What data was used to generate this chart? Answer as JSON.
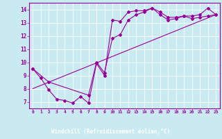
{
  "background_color": "#c8eaf0",
  "line_color": "#990099",
  "grid_color": "#ffffff",
  "axis_bg": "#800080",
  "xlabel": "Windchill (Refroidissement éolien,°C)",
  "x_ticks": [
    0,
    1,
    2,
    3,
    4,
    5,
    6,
    7,
    8,
    9,
    10,
    11,
    12,
    13,
    14,
    15,
    16,
    17,
    18,
    19,
    20,
    21,
    22,
    23
  ],
  "ylim": [
    6.5,
    14.5
  ],
  "xlim": [
    -0.5,
    23.5
  ],
  "yticks": [
    7,
    8,
    9,
    10,
    11,
    12,
    13,
    14
  ],
  "series1_x": [
    0,
    1,
    2,
    3,
    4,
    5,
    6,
    7,
    8,
    9,
    10,
    11,
    12,
    13,
    14,
    15,
    16,
    17,
    18,
    19,
    20,
    21,
    22,
    23
  ],
  "series1_y": [
    9.5,
    8.8,
    7.9,
    7.2,
    7.1,
    6.9,
    7.4,
    6.9,
    9.9,
    9.0,
    13.2,
    13.1,
    13.8,
    13.9,
    13.9,
    14.1,
    13.6,
    13.2,
    13.3,
    13.5,
    13.3,
    13.4,
    13.5,
    13.6
  ],
  "series2_x": [
    0,
    2,
    7,
    8,
    9,
    10,
    11,
    12,
    13,
    14,
    15,
    16,
    17,
    18,
    19,
    20,
    21,
    22,
    23
  ],
  "series2_y": [
    9.5,
    8.5,
    7.5,
    10.0,
    9.2,
    11.8,
    12.1,
    13.2,
    13.6,
    13.8,
    14.1,
    13.8,
    13.4,
    13.4,
    13.5,
    13.5,
    13.6,
    14.1,
    13.6
  ],
  "series3_x": [
    0,
    23
  ],
  "series3_y": [
    8.0,
    13.6
  ],
  "marker_size": 2.0,
  "line_width": 0.8
}
